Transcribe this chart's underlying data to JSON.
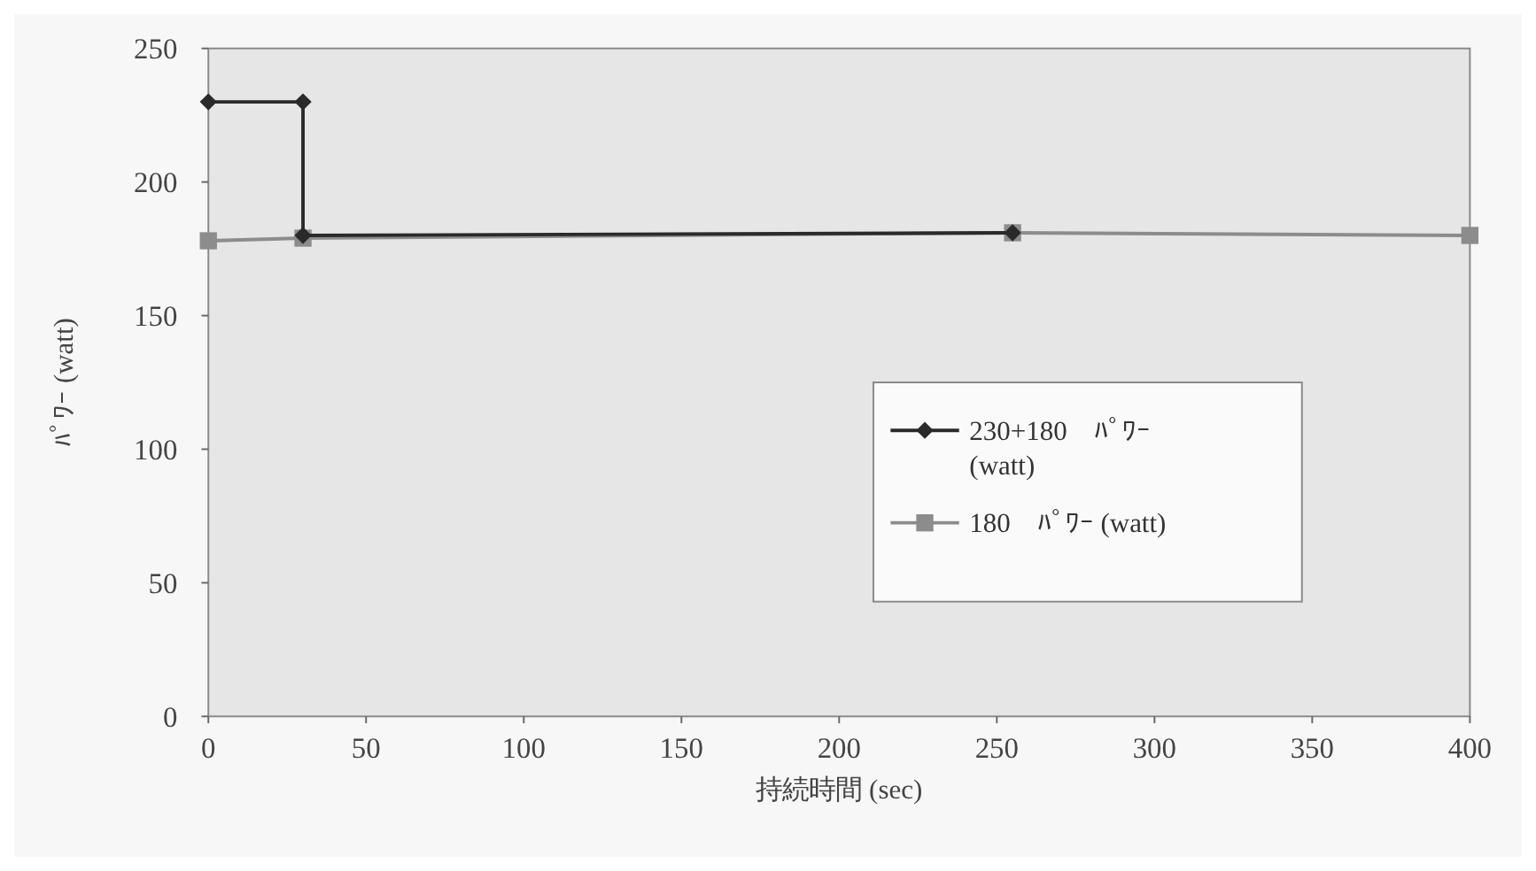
{
  "chart_data": {
    "type": "line",
    "xlabel": "持続時間 (sec)",
    "ylabel": "ﾊﾟﾜｰ (watt)",
    "xlim": [
      0,
      400
    ],
    "xticks": [
      0,
      50,
      100,
      150,
      200,
      250,
      300,
      350,
      400
    ],
    "ylim": [
      0,
      250
    ],
    "yticks": [
      0,
      50,
      100,
      150,
      200,
      250
    ],
    "legend": "right",
    "grid": false,
    "line_style": "solid",
    "series": [
      {
        "name": "230+180　ﾊﾟﾜｰ (watt)",
        "color": "#2a2a2a",
        "marker": "diamond",
        "x": [
          0,
          30,
          30,
          255
        ],
        "values": [
          230,
          230,
          180,
          181
        ]
      },
      {
        "name": "180　ﾊﾟﾜｰ (watt)",
        "color": "#8c8c8c",
        "marker": "square",
        "x": [
          0,
          30,
          255,
          400
        ],
        "values": [
          178,
          179,
          181,
          180
        ]
      }
    ]
  }
}
